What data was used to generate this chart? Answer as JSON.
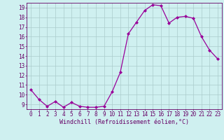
{
  "x": [
    0,
    1,
    2,
    3,
    4,
    5,
    6,
    7,
    8,
    9,
    10,
    11,
    12,
    13,
    14,
    15,
    16,
    17,
    18,
    19,
    20,
    21,
    22,
    23
  ],
  "y": [
    10.5,
    9.5,
    8.8,
    9.3,
    8.7,
    9.2,
    8.8,
    8.7,
    8.7,
    8.8,
    10.3,
    12.3,
    16.3,
    17.5,
    18.7,
    19.3,
    19.2,
    17.4,
    18.0,
    18.1,
    17.9,
    16.0,
    14.6,
    13.7
  ],
  "line_color": "#990099",
  "marker": "D",
  "marker_size": 2,
  "bg_color": "#cff0f0",
  "grid_color": "#aacccc",
  "xlabel": "Windchill (Refroidissement éolien,°C)",
  "xlabel_fontsize": 6,
  "ylim": [
    8.5,
    19.5
  ],
  "xlim": [
    -0.5,
    23.5
  ],
  "xtick_labels": [
    "0",
    "1",
    "2",
    "3",
    "4",
    "5",
    "6",
    "7",
    "8",
    "9",
    "10",
    "11",
    "12",
    "13",
    "14",
    "15",
    "16",
    "17",
    "18",
    "19",
    "20",
    "21",
    "22",
    "23"
  ],
  "yticks": [
    9,
    10,
    11,
    12,
    13,
    14,
    15,
    16,
    17,
    18,
    19
  ],
  "label_color": "#660066",
  "tick_fontsize": 5.5,
  "linewidth": 0.9
}
